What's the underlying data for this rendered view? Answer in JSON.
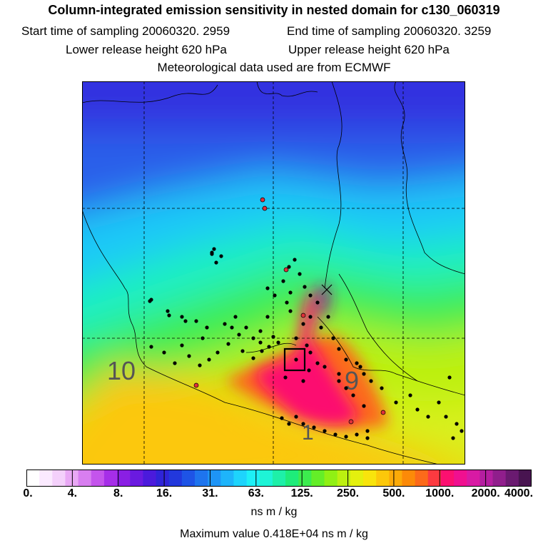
{
  "title": "Column-integrated emission sensitivity in nested domain for c130_060319",
  "start_label": "Start time of sampling 20060320.  2959",
  "end_label": "End time of sampling 20060320.  3259",
  "lower_label": "Lower release height  620 hPa",
  "upper_label": "Upper release height  620 hPa",
  "met_label": "Meteorological data used are from ECMWF",
  "map": {
    "timezone_labels": [
      "10",
      "9",
      "1"
    ],
    "marker": "receptor box",
    "colors": {
      "land_outline": "#000000",
      "grid": "#000000",
      "dots": "#000000",
      "red_dots": "#e0303a"
    }
  },
  "colorbar": {
    "tick_labels": [
      "0.",
      "4.",
      "8.",
      "16.",
      "31.",
      "63.",
      "125.",
      "250.",
      "500.",
      "1000.",
      "2000.",
      "4000."
    ],
    "colors": [
      "#ffffff",
      "#fbeaff",
      "#f4d0fb",
      "#e9a8f5",
      "#d87ef0",
      "#c454ec",
      "#a62ee8",
      "#8a1fe4",
      "#6a1ae0",
      "#4b1adc",
      "#2f24d8",
      "#2238dc",
      "#1e54e6",
      "#1e74ee",
      "#1e94f6",
      "#1eb4fa",
      "#1ed4fc",
      "#1ef0f6",
      "#1ef4d6",
      "#1ef0a8",
      "#1eec7a",
      "#3cec4e",
      "#64ee28",
      "#90f014",
      "#bcf010",
      "#e4f00e",
      "#f8e40c",
      "#fcc80a",
      "#fcaa08",
      "#fc8a08",
      "#fc6a1a",
      "#fc3a40",
      "#fc1070",
      "#f01090",
      "#d81aa4",
      "#b41ea0",
      "#901e8c",
      "#6a1a70",
      "#481450"
    ]
  },
  "units": "ns m / kg",
  "max_label": "Maximum value  0.418E+04 ns m / kg"
}
